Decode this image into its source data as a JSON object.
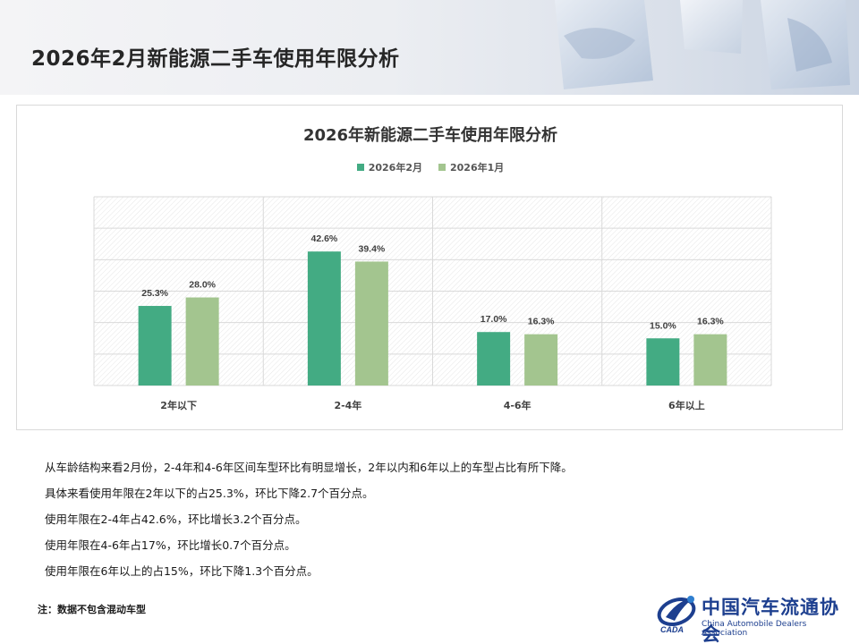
{
  "page": {
    "title": "2026年2月新能源二手车使用年限分析"
  },
  "chart_data": {
    "type": "bar",
    "title": "2026年新能源二手车使用年限分析",
    "categories": [
      "2年以下",
      "2-4年",
      "4-6年",
      "6年以上"
    ],
    "series": [
      {
        "name": "2026年2月",
        "values": [
          25.3,
          42.6,
          17.0,
          15.0
        ],
        "labels": [
          "25.3%",
          "42.6%",
          "17.0%",
          "15.0%"
        ],
        "color": "#43ab83"
      },
      {
        "name": "2026年1月",
        "values": [
          28.0,
          39.4,
          16.3,
          16.3
        ],
        "labels": [
          "28.0%",
          "39.4%",
          "16.3%",
          "16.3%"
        ],
        "color": "#a3c58f"
      }
    ],
    "ylim": [
      0,
      60
    ],
    "y_axis_visible": false,
    "grid": true,
    "legend_position": "top-center"
  },
  "notes": [
    "从车龄结构来看2月份，2-4年和4-6年区间车型环比有明显增长，2年以内和6年以上的车型占比有所下降。",
    "具体来看使用年限在2年以下的占25.3%，环比下降2.7个百分点。",
    "使用年限在2-4年占42.6%，环比增长3.2个百分点。",
    "使用年限在4-6年占17%，环比增长0.7个百分点。",
    "使用年限在6年以上的占15%，环比下降1.3个百分点。"
  ],
  "footnote": "注：数据不包含混动车型",
  "logo": {
    "name_cn": "中国汽车流通协会",
    "name_en": "China Automobile Dealers Association",
    "abbr": "CADA"
  }
}
